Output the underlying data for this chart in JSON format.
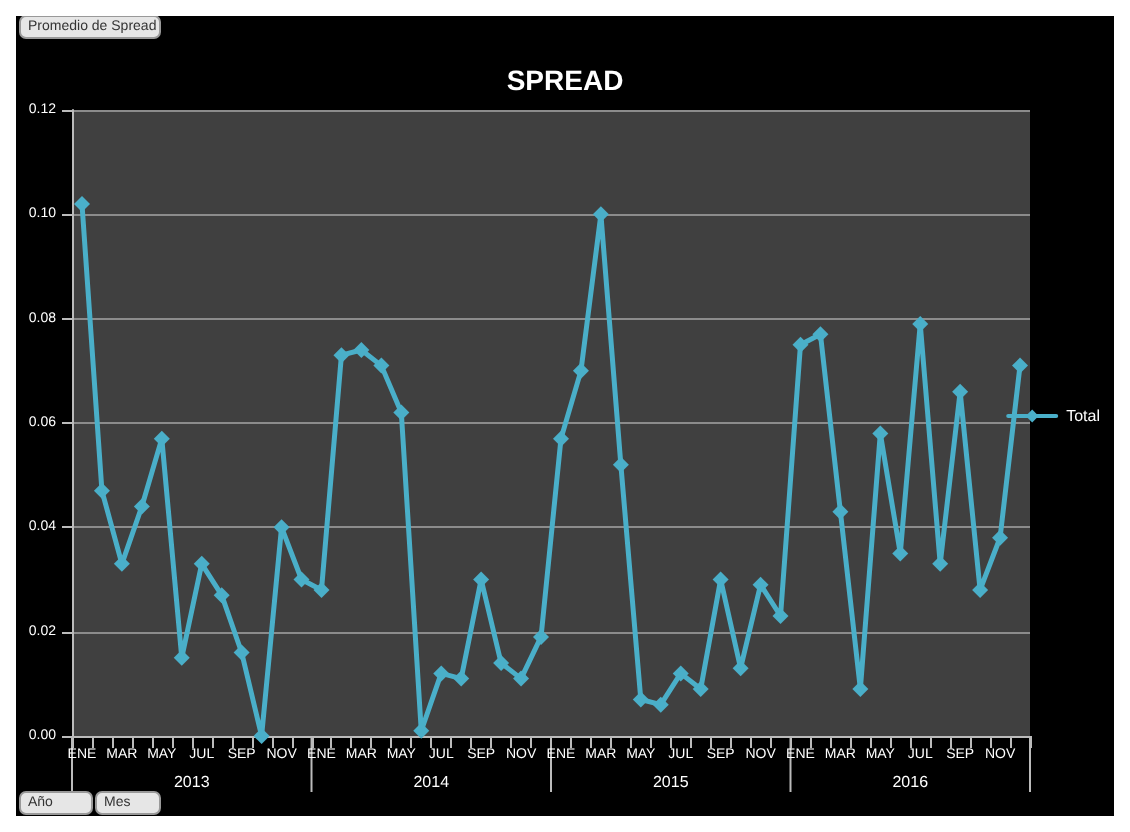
{
  "chart_data": {
    "type": "line",
    "title": "SPREAD",
    "categories": [
      "ENE",
      null,
      "MAR",
      null,
      "MAY",
      null,
      "JUL",
      null,
      "SEP",
      null,
      "NOV",
      null,
      "ENE",
      null,
      "MAR",
      null,
      "MAY",
      null,
      "JUL",
      null,
      "SEP",
      null,
      "NOV",
      null,
      "ENE",
      null,
      "MAR",
      null,
      "MAY",
      null,
      "JUL",
      null,
      "SEP",
      null,
      "NOV",
      null,
      "ENE",
      null,
      "MAR",
      null,
      "MAY",
      null,
      "JUL",
      null,
      "SEP",
      null,
      "NOV",
      null
    ],
    "series": [
      {
        "name": "Total",
        "color": "#4aafc9",
        "values": [
          0.102,
          0.047,
          0.033,
          0.044,
          0.057,
          0.015,
          0.033,
          0.027,
          0.016,
          0.0,
          0.04,
          0.03,
          0.028,
          0.073,
          0.074,
          0.071,
          0.062,
          0.001,
          0.012,
          0.011,
          0.03,
          0.014,
          0.011,
          0.019,
          0.057,
          0.07,
          0.1,
          0.052,
          0.007,
          0.006,
          0.012,
          0.009,
          0.03,
          0.013,
          0.029,
          0.023,
          0.075,
          0.077,
          0.043,
          0.009,
          0.058,
          0.035,
          0.079,
          0.033,
          0.066,
          0.028,
          0.038,
          0.071
        ]
      }
    ],
    "ylim": [
      0,
      0.12
    ],
    "yticks": [
      {
        "value": 0,
        "label": "0.00"
      },
      {
        "value": 0.02,
        "label": "0.02"
      },
      {
        "value": 0.04,
        "label": "0.04"
      },
      {
        "value": 0.06,
        "label": "0.06"
      },
      {
        "value": 0.08,
        "label": "0.08"
      },
      {
        "value": 0.1,
        "label": "0.10"
      },
      {
        "value": 0.12,
        "label": "0.12"
      }
    ],
    "grid": "y",
    "legend": "right",
    "marker": "diamond",
    "line_style": "solid",
    "annotations": [
      "Promedio de Spread",
      "2013",
      "2014",
      "2015",
      "2016",
      "Año",
      "Mes"
    ]
  }
}
